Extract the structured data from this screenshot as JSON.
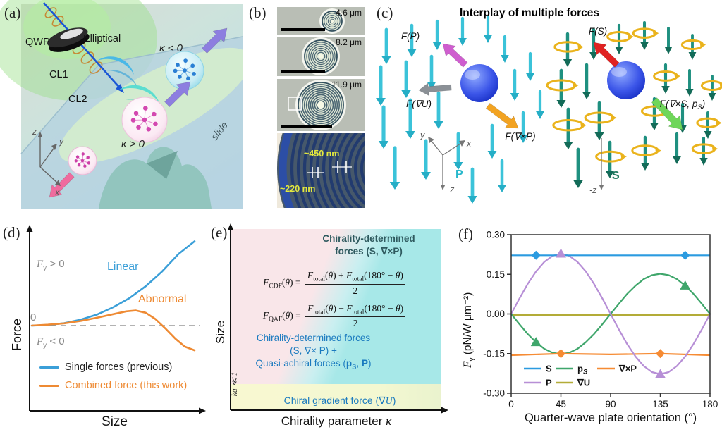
{
  "figure": {
    "panel_labels": {
      "a": "(a)",
      "b": "(b)",
      "c": "(c)",
      "d": "(d)",
      "e": "(e)",
      "f": "(f)"
    }
  },
  "panel_a": {
    "qwp": "QWP",
    "elliptical": "Elliptical",
    "cl1": "CL1",
    "cl2": "CL2",
    "kappa_neg": "κ < 0",
    "kappa_pos": "κ > 0",
    "slide": "slide",
    "axis_z": "z",
    "axis_y": "y",
    "axis_x": "x"
  },
  "panel_b": {
    "sizes": [
      "4.6 μm",
      "8.2 μm",
      "11.9 μm"
    ],
    "ring_outer": "~450 nm",
    "ring_inner": "~220 nm"
  },
  "panel_c": {
    "title": "Interplay of multiple forces",
    "f_p": "F(P)",
    "f_grad_u": "F(∇U)",
    "f_curl_p": "F(∇×P)",
    "f_s": "F(S)",
    "f_curl_s_pre": "F(∇×S, p",
    "f_curl_s_sub": "S",
    "f_curl_s_post": ")",
    "p_field": "P",
    "s_field": "S",
    "axis_y": "y",
    "axis_x": "x",
    "axis_mz_left": "-z",
    "axis_mz_right": "-z"
  },
  "panel_d": {
    "fy_pos": {
      "f": "F",
      "sub": "y",
      "rest": " > 0"
    },
    "fy_neg": {
      "f": "F",
      "sub": "y",
      "rest": " < 0"
    },
    "zero": "0",
    "linear": "Linear",
    "abnormal": "Abnormal",
    "ylabel": "Force",
    "xlabel": "Size",
    "legend": [
      {
        "label": "Single forces (previous)",
        "color": "#3b9fd8",
        "text_color": "#222222"
      },
      {
        "label": "Combined force (this work)",
        "color": "#ee8a33",
        "text_color": "#ee8a33"
      }
    ]
  },
  "panel_e": {
    "ylabel": "Size",
    "xlabel_pre": "Chirality parameter ",
    "xlabel_kappa": "κ",
    "ka": "ka ≪ 1",
    "top_line1": "Chirality-determined",
    "top_line2": "forces (S, ∇×P)",
    "mid_line1": "Chirality-determined forces",
    "mid_line2": "(S, ∇× P) +",
    "mid_line3_pre": "Quasi-achiral forces (",
    "mid_line3_p": "p",
    "mid_line3_sub": "S",
    "mid_line3_mid": ", ",
    "mid_line3_P": "P",
    "mid_line3_post": ")",
    "bottom_pre": "Chiral gradient force (∇",
    "bottom_U": "U",
    "bottom_post": ")",
    "colors": {
      "pink": "#f9e6e9",
      "cyan": "#a7e8e8",
      "yellow": "#f8f9d0",
      "top_text": "#2f5a5f",
      "blue_text": "#1a7abf"
    },
    "formulas": [
      {
        "F": "F",
        "sub": "CDF",
        "o": "(",
        "theta": "θ",
        "c": ") = ",
        "nF1": "F",
        "nsub1": "total",
        "no1": "(",
        "nt1": "θ",
        "nm": ") + ",
        "nF2": "F",
        "nsub2": "total",
        "no2": "(180° − ",
        "nt2": "θ",
        "nc": ")",
        "den": "2"
      },
      {
        "F": "F",
        "sub": "QAF",
        "o": "(",
        "theta": "θ",
        "c": ") = ",
        "nF1": "F",
        "nsub1": "total",
        "no1": "(",
        "nt1": "θ",
        "nm": ") − ",
        "nF2": "F",
        "nsub2": "total",
        "no2": "(180° − ",
        "nt2": "θ",
        "nc": ")",
        "den": "2"
      }
    ]
  },
  "panel_f": {
    "ylabel": {
      "f": "F",
      "sub": "y",
      "rest": " (pN/W μm⁻²)"
    },
    "xlabel": "Quarter-wave plate orientation (°)"
  },
  "chart_data": [
    {
      "panel": "d",
      "type": "line",
      "title": "",
      "xlabel": "Size",
      "ylabel": "Force",
      "axes_note": "schematic, unitless; dashed line marks zero force",
      "zero_line": true,
      "legend_position": "inside bottom-left",
      "grid": false,
      "series": [
        {
          "name": "Single forces (previous)",
          "label_on_plot": "Linear",
          "color": "#3b9fd8",
          "x": [
            0,
            0.1,
            0.2,
            0.3,
            0.4,
            0.5,
            0.6,
            0.7,
            0.8,
            0.9,
            1.0
          ],
          "y": [
            0,
            0.006,
            0.027,
            0.065,
            0.12,
            0.2,
            0.3,
            0.43,
            0.59,
            0.78,
            0.92
          ]
        },
        {
          "name": "Combined force (this work)",
          "label_on_plot": "Abnormal",
          "color": "#ee8a33",
          "x": [
            0,
            0.1,
            0.2,
            0.3,
            0.4,
            0.5,
            0.58,
            0.64,
            0.7,
            0.76,
            0.82,
            0.88,
            0.94,
            1.0
          ],
          "y": [
            0,
            0.01,
            0.025,
            0.05,
            0.085,
            0.125,
            0.155,
            0.165,
            0.14,
            0.07,
            -0.03,
            -0.14,
            -0.23,
            -0.27
          ]
        }
      ]
    },
    {
      "panel": "f",
      "type": "line",
      "title": "",
      "xlabel": "Quarter-wave plate orientation (°)",
      "ylabel": "Fy (pN/W μm⁻²)",
      "xlim": [
        0,
        180
      ],
      "ylim": [
        -0.3,
        0.3
      ],
      "xticks": [
        0,
        45,
        90,
        135,
        180
      ],
      "yticks": [
        0.3,
        0.15,
        0.0,
        -0.15,
        -0.3
      ],
      "xtick_labels": [
        "0",
        "45",
        "90",
        "135",
        "180"
      ],
      "ytick_labels": [
        "0.30",
        "0.15",
        "0.00",
        "-0.15",
        "-0.30"
      ],
      "legend_rows": [
        [
          "S",
          "p_S",
          "∇×P"
        ],
        [
          "P",
          "∇U"
        ]
      ],
      "legend_position": "inside bottom-left",
      "grid": false,
      "series": [
        {
          "name": "∇U",
          "color": "#b3ac38",
          "marker": "none",
          "x": [
            0,
            180
          ],
          "y": [
            -0.004,
            -0.004
          ],
          "marker_points": []
        },
        {
          "name": "p_S",
          "color": "#3fa66b",
          "marker": "triangle",
          "x": [
            0,
            7.5,
            15,
            22.5,
            30,
            37.5,
            45,
            52.5,
            60,
            67.5,
            75,
            82.5,
            90,
            97.5,
            105,
            112.5,
            120,
            127.5,
            135,
            142.5,
            150,
            157.5,
            165,
            172.5,
            180
          ],
          "y": [
            0,
            -0.039,
            -0.076,
            -0.107,
            -0.132,
            -0.147,
            -0.152,
            -0.147,
            -0.132,
            -0.107,
            -0.076,
            -0.039,
            0,
            0.039,
            0.076,
            0.107,
            0.132,
            0.147,
            0.152,
            0.147,
            0.132,
            0.107,
            0.076,
            0.039,
            0
          ],
          "marker_points": [
            [
              22.5,
              -0.107
            ],
            [
              157.5,
              0.107
            ]
          ]
        },
        {
          "name": "∇×P",
          "color": "#f68b33",
          "marker": "diamond",
          "x": [
            0,
            45,
            90,
            135,
            180
          ],
          "y": [
            -0.156,
            -0.15,
            -0.153,
            -0.15,
            -0.156
          ],
          "marker_points": [
            [
              45,
              -0.15
            ],
            [
              135,
              -0.15
            ]
          ]
        },
        {
          "name": "P",
          "color": "#b78fd6",
          "marker": "triangle",
          "x": [
            0,
            7.5,
            15,
            22.5,
            30,
            37.5,
            45,
            52.5,
            60,
            67.5,
            75,
            82.5,
            90,
            97.5,
            105,
            112.5,
            120,
            127.5,
            135,
            142.5,
            150,
            157.5,
            165,
            172.5,
            180
          ],
          "y": [
            0,
            0.059,
            0.114,
            0.161,
            0.197,
            0.22,
            0.228,
            0.22,
            0.197,
            0.161,
            0.114,
            0.059,
            0,
            -0.059,
            -0.114,
            -0.161,
            -0.197,
            -0.22,
            -0.228,
            -0.22,
            -0.197,
            -0.161,
            -0.114,
            -0.059,
            0
          ],
          "marker_points": [
            [
              45,
              0.228
            ],
            [
              135,
              -0.228
            ]
          ]
        },
        {
          "name": "S",
          "color": "#2b9be0",
          "marker": "diamond",
          "x": [
            0,
            180
          ],
          "y": [
            0.222,
            0.222
          ],
          "marker_points": [
            [
              22.5,
              0.222
            ],
            [
              157.5,
              0.222
            ]
          ]
        }
      ]
    }
  ]
}
